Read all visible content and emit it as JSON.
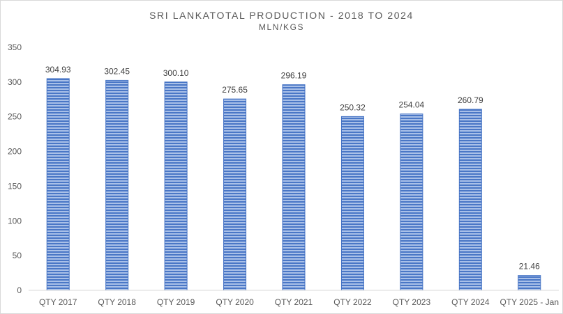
{
  "chart_data": {
    "type": "bar",
    "title": "SRI LANKATOTAL PRODUCTION -  2018 TO 2024",
    "subtitle": "MLN/KGS",
    "xlabel": "",
    "ylabel": "",
    "categories": [
      "QTY 2017",
      "QTY 2018",
      "QTY 2019",
      "QTY 2020",
      "QTY 2021",
      "QTY 2022",
      "QTY 2023",
      "QTY 2024",
      "QTY 2025 - Jan"
    ],
    "values": [
      304.93,
      302.45,
      300.1,
      275.65,
      296.19,
      250.32,
      254.04,
      260.79,
      21.46
    ],
    "data_labels": [
      "304.93",
      "302.45",
      "300.10",
      "275.65",
      "296.19",
      "250.32",
      "254.04",
      "260.79",
      "21.46"
    ],
    "ylim": [
      0,
      350
    ],
    "yticks": [
      "0",
      "50",
      "100",
      "150",
      "200",
      "250",
      "300",
      "350"
    ],
    "grid": false,
    "legend": "none",
    "bar_color": "#4472c4",
    "bar_fill_color": "#a9c0e8"
  }
}
